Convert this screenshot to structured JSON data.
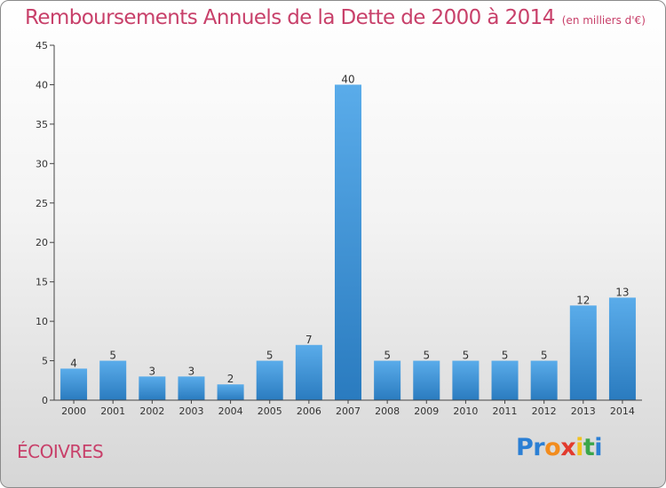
{
  "header": {
    "title": "Remboursements Annuels de la Dette de 2000 à 2014",
    "unit": "(en milliers d'€)"
  },
  "footer": {
    "commune": "ÉCOIVRES",
    "logo": {
      "letters": [
        {
          "char": "P",
          "color": "#2b7fd4"
        },
        {
          "char": "r",
          "color": "#2b7fd4"
        },
        {
          "char": "o",
          "color": "#f28c1e"
        },
        {
          "char": "x",
          "color": "#e23b2e"
        },
        {
          "char": "i",
          "color": "#f2c11e"
        },
        {
          "char": "t",
          "color": "#3aa64a"
        },
        {
          "char": "i",
          "color": "#2b7fd4"
        }
      ]
    }
  },
  "colors": {
    "title": "#c8406a",
    "bar_top": "#5aacea",
    "bar_bottom": "#2a7bbf",
    "axis": "#444444"
  },
  "chart_data": {
    "type": "bar",
    "title": "Remboursements Annuels de la Dette de 2000 à 2014",
    "subtitle": "(en milliers d'€)",
    "xlabel": "",
    "ylabel": "",
    "categories": [
      "2000",
      "2001",
      "2002",
      "2003",
      "2004",
      "2005",
      "2006",
      "2007",
      "2008",
      "2009",
      "2010",
      "2011",
      "2012",
      "2013",
      "2014"
    ],
    "values": [
      4,
      5,
      3,
      3,
      2,
      5,
      7,
      40,
      5,
      5,
      5,
      5,
      5,
      12,
      13
    ],
    "data_labels": [
      "4",
      "5",
      "3",
      "3",
      "2",
      "5",
      "7",
      "40",
      "5",
      "5",
      "5",
      "5",
      "5",
      "12",
      "13"
    ],
    "ylim": [
      0,
      45
    ],
    "yticks": [
      0,
      5,
      10,
      15,
      20,
      25,
      30,
      35,
      40,
      45
    ],
    "grid": false,
    "legend": "none"
  }
}
